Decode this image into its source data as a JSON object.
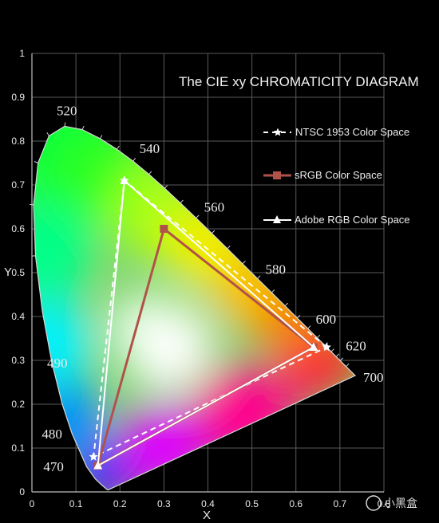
{
  "chart_data": {
    "type": "line",
    "title": "The CIE xy  CHROMATICITY  DIAGRAM",
    "xlabel": "X",
    "ylabel": "Y",
    "xlim": [
      0,
      0.8
    ],
    "ylim": [
      0,
      1
    ],
    "x_ticks": [
      "0",
      "0.1",
      "0.2",
      "0.3",
      "0.4",
      "0.5",
      "0.6",
      "0.7",
      "0.8"
    ],
    "y_ticks": [
      "0",
      "0.1",
      "0.2",
      "0.3",
      "0.4",
      "0.5",
      "0.6",
      "0.7",
      "0.8",
      "0.9",
      "1"
    ],
    "x_tick_values": [
      0,
      0.1,
      0.2,
      0.3,
      0.4,
      0.5,
      0.6,
      0.7,
      0.8
    ],
    "y_tick_values": [
      0,
      0.1,
      0.2,
      0.3,
      0.4,
      0.5,
      0.6,
      0.7,
      0.8,
      0.9,
      1
    ],
    "grid": true,
    "legend_position": "right",
    "spectral_locus": {
      "x": [
        0.1741,
        0.1738,
        0.1733,
        0.1726,
        0.1714,
        0.1689,
        0.1644,
        0.1566,
        0.144,
        0.1241,
        0.0913,
        0.0687,
        0.0454,
        0.0235,
        0.0082,
        0.0039,
        0.0139,
        0.0389,
        0.0743,
        0.1142,
        0.1547,
        0.1929,
        0.2296,
        0.2658,
        0.3016,
        0.3373,
        0.3731,
        0.4087,
        0.4441,
        0.4788,
        0.5125,
        0.5448,
        0.5752,
        0.6029,
        0.627,
        0.6482,
        0.6658,
        0.6801,
        0.6915,
        0.7006,
        0.714,
        0.7347
      ],
      "y": [
        0.005,
        0.005,
        0.0048,
        0.0048,
        0.0051,
        0.0069,
        0.0109,
        0.0177,
        0.0297,
        0.0578,
        0.1327,
        0.2007,
        0.295,
        0.4127,
        0.5384,
        0.6548,
        0.7502,
        0.812,
        0.8338,
        0.8262,
        0.8059,
        0.7816,
        0.7543,
        0.7243,
        0.6923,
        0.6589,
        0.6245,
        0.5896,
        0.5547,
        0.5202,
        0.4866,
        0.4544,
        0.4242,
        0.3965,
        0.3725,
        0.3514,
        0.334,
        0.3197,
        0.3083,
        0.2993,
        0.2859,
        0.2653
      ]
    },
    "wavelength_labels": [
      {
        "text": "520",
        "x": 0.0743,
        "y": 0.8338
      },
      {
        "text": "540",
        "x": 0.2296,
        "y": 0.7543
      },
      {
        "text": "560",
        "x": 0.3731,
        "y": 0.6245
      },
      {
        "text": "580",
        "x": 0.5125,
        "y": 0.4866
      },
      {
        "text": "600",
        "x": 0.627,
        "y": 0.3725
      },
      {
        "text": "620",
        "x": 0.6915,
        "y": 0.3083
      },
      {
        "text": "700",
        "x": 0.7347,
        "y": 0.2653
      },
      {
        "text": "490",
        "x": 0.0454,
        "y": 0.295
      },
      {
        "text": "480",
        "x": 0.0913,
        "y": 0.1327
      },
      {
        "text": "470",
        "x": 0.1241,
        "y": 0.0578
      }
    ],
    "series": [
      {
        "name": "NTSC 1953 Color Space",
        "style": "dashed-star",
        "color": "#ffffff",
        "x": [
          0.67,
          0.21,
          0.14,
          0.67
        ],
        "y": [
          0.33,
          0.71,
          0.08,
          0.33
        ]
      },
      {
        "name": "sRGB Color Space",
        "style": "solid-square",
        "color": "#b0524a",
        "x": [
          0.64,
          0.3,
          0.15,
          0.64
        ],
        "y": [
          0.33,
          0.6,
          0.06,
          0.33
        ]
      },
      {
        "name": "Adobe RGB Color Space",
        "style": "solid-triangle",
        "color": "#ffffff",
        "x": [
          0.64,
          0.21,
          0.15,
          0.64
        ],
        "y": [
          0.33,
          0.71,
          0.06,
          0.33
        ]
      }
    ]
  },
  "watermark": {
    "text": "小黑盒"
  },
  "colors": {
    "background": "#000000",
    "grid": "#5a5a5a",
    "axis": "#bdbdbd"
  }
}
